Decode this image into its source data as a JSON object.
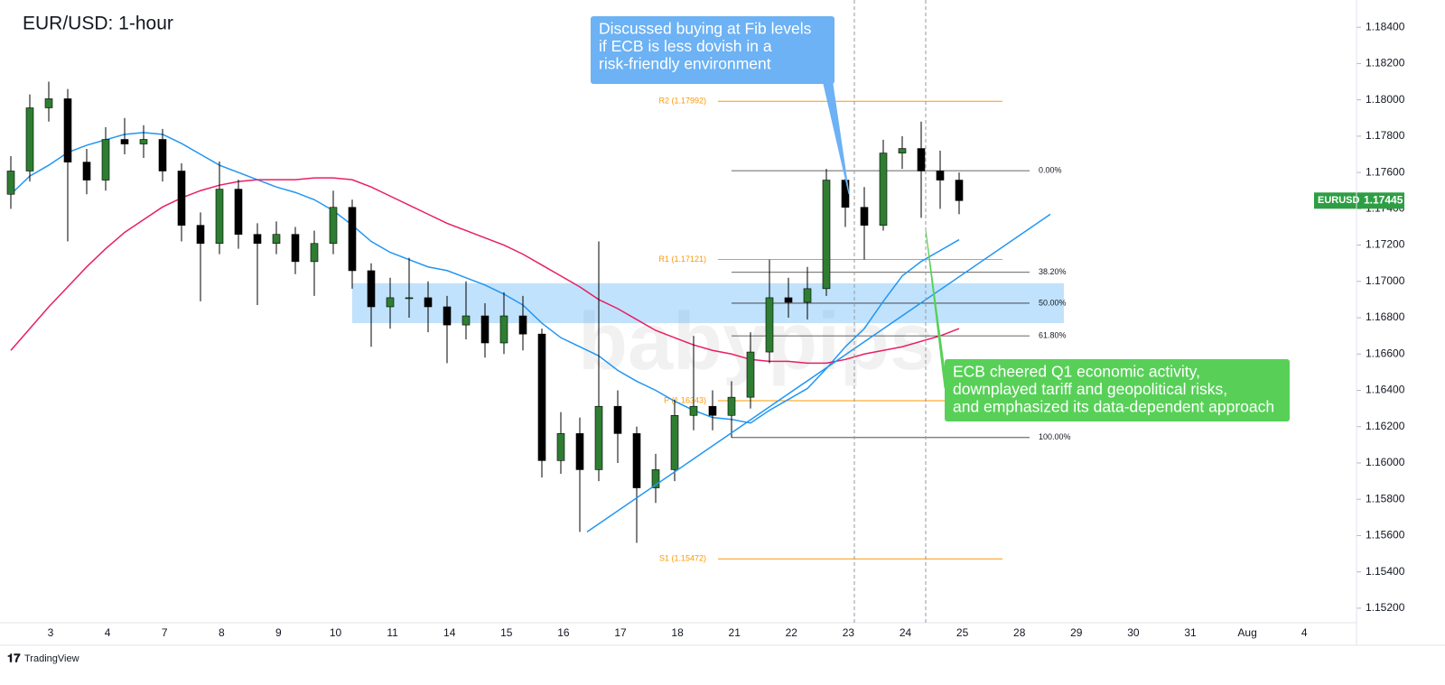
{
  "chart_data": {
    "type": "candlestick",
    "title": "EUR/USD: 1-hour",
    "x_labels": [
      "3",
      "4",
      "7",
      "8",
      "9",
      "10",
      "11",
      "14",
      "15",
      "16",
      "17",
      "18",
      "21",
      "22",
      "23",
      "24",
      "25",
      "28",
      "29",
      "30",
      "31",
      "Aug",
      "4"
    ],
    "up_color": "#2e7d32",
    "down_color": "#000000",
    "candles": {
      "open": [
        1.1748,
        1.17608,
        1.17956,
        1.18006,
        1.17657,
        1.17558,
        1.17782,
        1.17757,
        1.17782,
        1.17608,
        1.17309,
        1.17209,
        1.17508,
        1.17259,
        1.17209,
        1.17259,
        1.17109,
        1.17209,
        1.17408,
        1.17059,
        1.1686,
        1.1691,
        1.1691,
        1.1686,
        1.1676,
        1.1681,
        1.16661,
        1.1681,
        1.1671,
        1.16013,
        1.16162,
        1.15963,
        1.16312,
        1.16162,
        1.15863,
        1.15963,
        1.16262,
        1.16312,
        1.16262,
        1.16362,
        1.16611,
        1.1691,
        1.16885,
        1.1696,
        1.17558,
        1.17408,
        1.17309,
        1.17707,
        1.17732,
        1.17608,
        1.17558
      ],
      "high": [
        1.1769,
        1.1803,
        1.181,
        1.1806,
        1.1773,
        1.1785,
        1.179,
        1.1786,
        1.1784,
        1.1765,
        1.1738,
        1.1766,
        1.1756,
        1.1732,
        1.1733,
        1.173,
        1.1728,
        1.175,
        1.1745,
        1.171,
        1.1702,
        1.1713,
        1.17,
        1.1692,
        1.17,
        1.1688,
        1.1694,
        1.1692,
        1.1674,
        1.1628,
        1.1625,
        1.1722,
        1.164,
        1.162,
        1.1605,
        1.1635,
        1.167,
        1.164,
        1.1645,
        1.1672,
        1.1712,
        1.1702,
        1.1708,
        1.1762,
        1.176,
        1.1752,
        1.1778,
        1.178,
        1.1788,
        1.1772,
        1.176
      ],
      "low": [
        1.174,
        1.1755,
        1.1788,
        1.1722,
        1.1748,
        1.175,
        1.177,
        1.1768,
        1.1755,
        1.1722,
        1.1689,
        1.1715,
        1.1718,
        1.1687,
        1.1715,
        1.1704,
        1.1692,
        1.1715,
        1.1696,
        1.1664,
        1.1674,
        1.168,
        1.1672,
        1.1655,
        1.1668,
        1.1658,
        1.166,
        1.1662,
        1.1592,
        1.1594,
        1.1562,
        1.159,
        1.16,
        1.1556,
        1.1578,
        1.159,
        1.1618,
        1.1618,
        1.1614,
        1.163,
        1.1655,
        1.168,
        1.1679,
        1.1692,
        1.173,
        1.1712,
        1.1728,
        1.1762,
        1.1735,
        1.174,
        1.1737
      ],
      "close": [
        1.17608,
        1.17956,
        1.18006,
        1.17657,
        1.17558,
        1.17782,
        1.17757,
        1.17782,
        1.17608,
        1.17309,
        1.17209,
        1.17508,
        1.17259,
        1.17209,
        1.17259,
        1.17109,
        1.17209,
        1.17408,
        1.17059,
        1.1686,
        1.1691,
        1.1691,
        1.1686,
        1.1676,
        1.1681,
        1.16661,
        1.1681,
        1.1671,
        1.16013,
        1.16162,
        1.15963,
        1.16312,
        1.16162,
        1.15863,
        1.15963,
        1.16262,
        1.16312,
        1.16262,
        1.16362,
        1.16611,
        1.1691,
        1.16885,
        1.1696,
        1.17558,
        1.17408,
        1.17309,
        1.17707,
        1.17732,
        1.17608,
        1.17558,
        1.17445
      ]
    },
    "moving_averages": [
      {
        "color": "#2196f3",
        "values": [
          1.1748,
          1.1758,
          1.1764,
          1.1771,
          1.1775,
          1.1778,
          1.1781,
          1.1782,
          1.1781,
          1.1776,
          1.177,
          1.1764,
          1.176,
          1.1756,
          1.1752,
          1.1749,
          1.1745,
          1.1739,
          1.1731,
          1.1722,
          1.1716,
          1.1712,
          1.1708,
          1.1706,
          1.1702,
          1.1698,
          1.1693,
          1.1687,
          1.1677,
          1.1669,
          1.1664,
          1.1659,
          1.1651,
          1.1645,
          1.164,
          1.1634,
          1.1629,
          1.1625,
          1.1624,
          1.1622,
          1.1629,
          1.1635,
          1.1641,
          1.1652,
          1.1664,
          1.1674,
          1.1689,
          1.1703,
          1.1711,
          1.1717,
          1.1723
        ]
      },
      {
        "color": "#e91e63",
        "values": [
          1.1662,
          1.1674,
          1.1686,
          1.1697,
          1.1708,
          1.1718,
          1.1727,
          1.1734,
          1.1741,
          1.1746,
          1.175,
          1.1753,
          1.1755,
          1.1756,
          1.1756,
          1.1756,
          1.1757,
          1.1757,
          1.1756,
          1.1752,
          1.1747,
          1.1742,
          1.1737,
          1.1732,
          1.1728,
          1.1724,
          1.172,
          1.1715,
          1.1709,
          1.1703,
          1.1697,
          1.169,
          1.1685,
          1.1679,
          1.1673,
          1.1669,
          1.1665,
          1.1662,
          1.166,
          1.1657,
          1.1656,
          1.1656,
          1.1655,
          1.1655,
          1.1657,
          1.166,
          1.1662,
          1.1664,
          1.1667,
          1.167,
          1.1674
        ]
      }
    ],
    "ylim": [
      1.1512,
      1.1855
    ],
    "yticks": [
      {
        "value": 1.152,
        "label": "1.15200"
      },
      {
        "value": 1.154,
        "label": "1.15400"
      },
      {
        "value": 1.156,
        "label": "1.15600"
      },
      {
        "value": 1.158,
        "label": "1.15800"
      },
      {
        "value": 1.16,
        "label": "1.16000"
      },
      {
        "value": 1.162,
        "label": "1.16200"
      },
      {
        "value": 1.164,
        "label": "1.16400"
      },
      {
        "value": 1.166,
        "label": "1.16600"
      },
      {
        "value": 1.168,
        "label": "1.16800"
      },
      {
        "value": 1.17,
        "label": "1.17000"
      },
      {
        "value": 1.172,
        "label": "1.17200"
      },
      {
        "value": 1.174,
        "label": "1.17400"
      },
      {
        "value": 1.176,
        "label": "1.17600"
      },
      {
        "value": 1.178,
        "label": "1.17800"
      },
      {
        "value": 1.18,
        "label": "1.18000"
      },
      {
        "value": 1.182,
        "label": "1.18200"
      },
      {
        "value": 1.184,
        "label": "1.18400"
      }
    ],
    "pivot_color": "#ff9800",
    "pivots": [
      {
        "label": "R2 (1.17992)",
        "value": 1.17992
      },
      {
        "label": "R1 (1.17121)",
        "value": 1.17121
      },
      {
        "label": "P (1.16343)",
        "value": 1.16343
      },
      {
        "label": "S1 (1.15472)",
        "value": 1.15472
      }
    ],
    "fib_levels": [
      {
        "label": "0.00%",
        "value": 1.1761
      },
      {
        "label": "38.20%",
        "value": 1.1705
      },
      {
        "label": "50.00%",
        "value": 1.1688
      },
      {
        "label": "61.80%",
        "value": 1.167
      },
      {
        "label": "100.00%",
        "value": 1.1614
      }
    ],
    "zone": {
      "color": "#2196f3",
      "values": [
        1.1677,
        1.1699
      ]
    },
    "trendline": {
      "color": "#2196f3",
      "values": [
        1.1562,
        1.1737
      ]
    },
    "price_tag": {
      "symbol": "EURUSD",
      "label": "1.17445",
      "value": 1.17445,
      "color": "#2e9e44"
    },
    "annotations": [
      {
        "lines": [
          "Discussed buying at Fib levels",
          "if ECB is less dovish in a",
          "risk-friendly environment"
        ],
        "color": "#6cb2f4"
      },
      {
        "lines": [
          "ECB cheered Q1 economic activity,",
          "downplayed tariff and geopolitical risks,",
          "and emphasized its data-dependent approach"
        ],
        "color": "#58d058"
      }
    ],
    "watermark": "babypips",
    "branding": "TradingView"
  }
}
